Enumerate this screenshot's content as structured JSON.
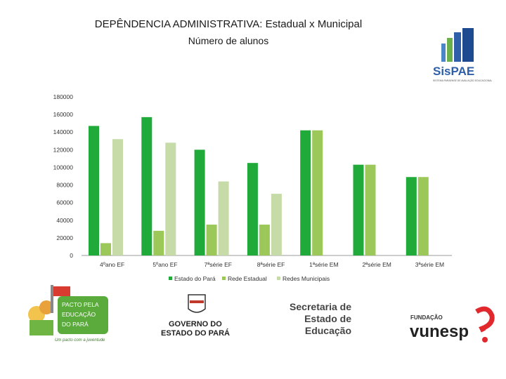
{
  "chart_data": {
    "type": "bar",
    "title": "DEPÊNDENCIA ADMINISTRATIVA: Estadual x Municipal",
    "subtitle": "Número de alunos",
    "categories": [
      "4ºano EF",
      "5ºano EF",
      "7ªsérie EF",
      "8ªsérie EF",
      "1ªsérie EM",
      "2ªsérie EM",
      "3ªsérie EM"
    ],
    "series": [
      {
        "name": "Estado do Pará",
        "color": "#1faa3a",
        "values": [
          147000,
          157000,
          120000,
          105000,
          142000,
          103000,
          89000
        ]
      },
      {
        "name": "Rede Estadual",
        "color": "#9bc858",
        "values": [
          14000,
          28000,
          35000,
          35000,
          142000,
          103000,
          89000
        ]
      },
      {
        "name": "Redes Municipais",
        "color": "#c6dba7",
        "values": [
          132000,
          128000,
          84000,
          70000,
          null,
          null,
          null
        ]
      }
    ],
    "yticks": [
      "180000",
      "160000",
      "140000",
      "120000",
      "100000",
      "80000",
      "60000",
      "40000",
      "20000",
      "0"
    ],
    "ylim": [
      0,
      180000
    ],
    "xlabel": "",
    "ylabel": "",
    "legend_position": "bottom"
  },
  "logos": {
    "sispae": {
      "name": "SisPAE",
      "tagline": "SISTEMA PARAENSE DE AVALIAÇÃO EDUCACIONAL"
    },
    "pacto": {
      "lines": [
        "PACTO PELA",
        "EDUCAÇÃO",
        "DO PARÁ"
      ],
      "slogan": "Um pacto com a juventude"
    },
    "governo": {
      "lines": [
        "GOVERNO DO",
        "ESTADO DO PARÁ"
      ]
    },
    "secretaria": {
      "lines": [
        "Secretaria de",
        "Estado de",
        "Educação"
      ]
    },
    "fundacao": {
      "label": "FUNDAÇÃO",
      "name": "vunesp"
    }
  }
}
